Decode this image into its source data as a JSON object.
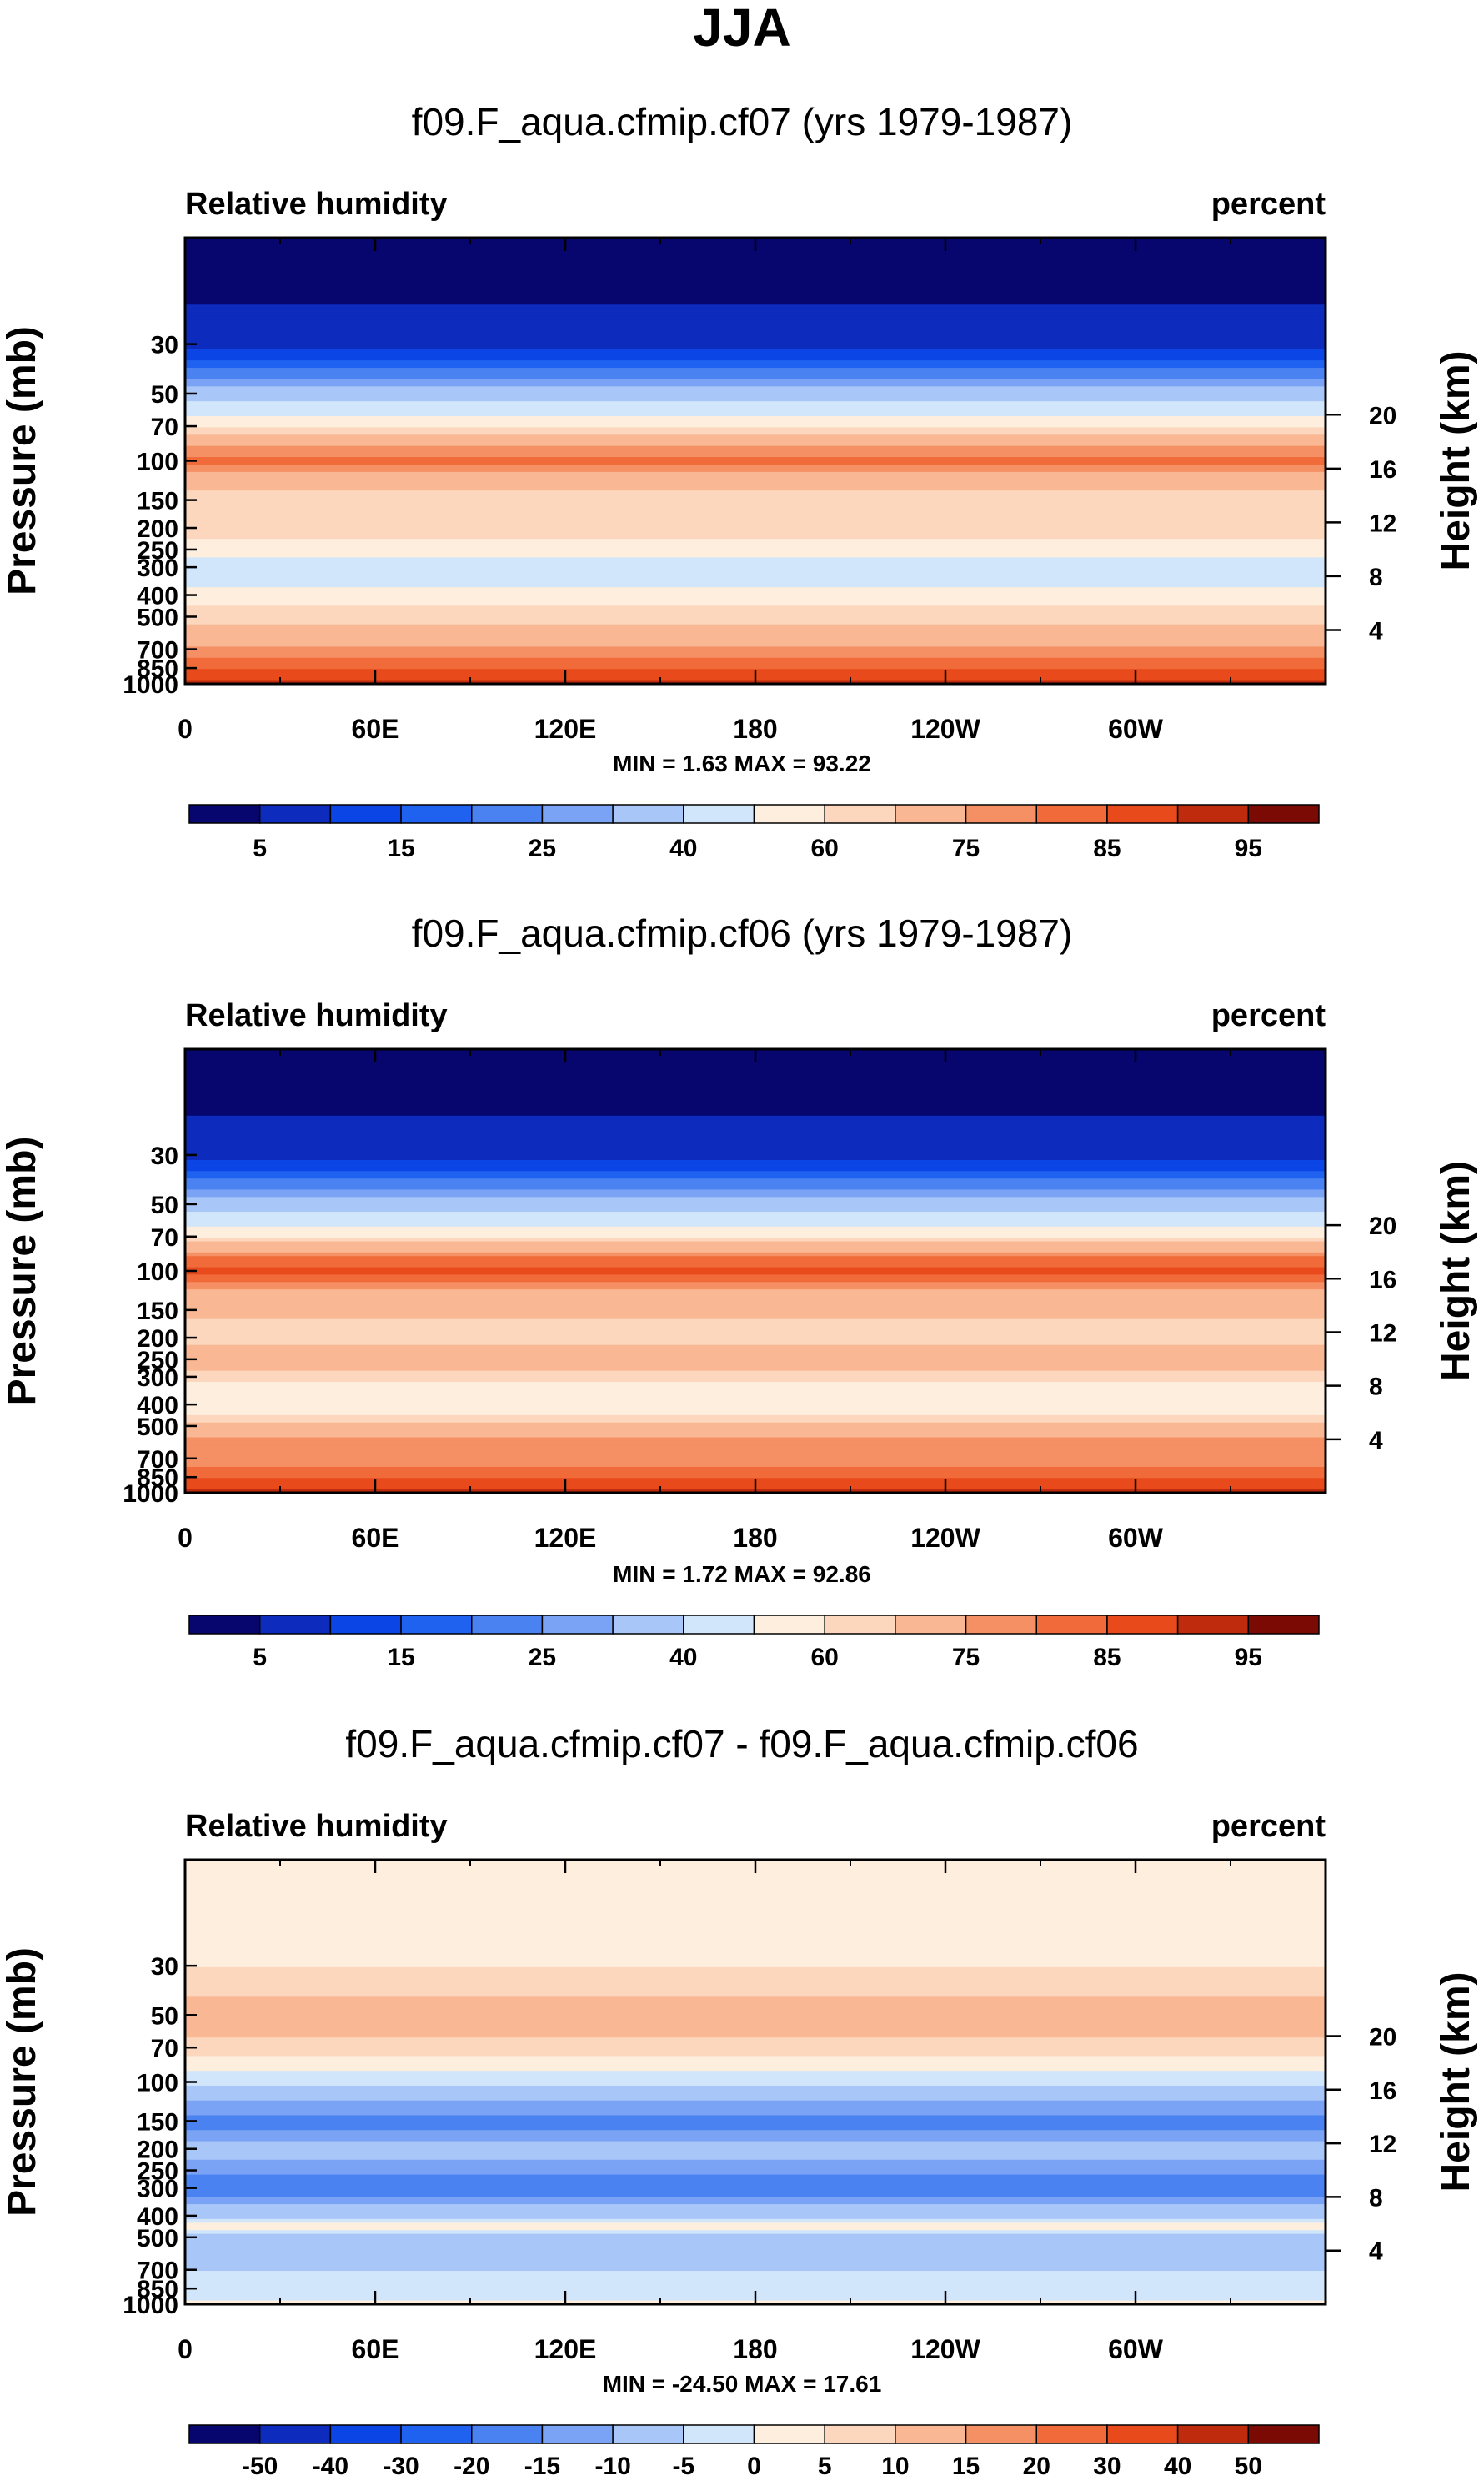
{
  "page": {
    "title": "JJA"
  },
  "chart_data": [
    {
      "type": "heatmap",
      "title": "f09.F_aqua.cfmip.cf07 (yrs 1979-1987)",
      "left_label": "Relative humidity",
      "right_label": "percent",
      "ylabel": "Pressure (mb)",
      "ylabel_right": "Height (km)",
      "x_ticks": [
        "0",
        "60E",
        "120E",
        "180",
        "120W",
        "60W"
      ],
      "y_ticks": [
        "30",
        "50",
        "70",
        "100",
        "150",
        "200",
        "250",
        "300",
        "400",
        "500",
        "700",
        "850",
        "1000"
      ],
      "height_ticks": [
        "20",
        "16",
        "12",
        "8",
        "4"
      ],
      "stats": "MIN =   1.63   MAX =  93.22",
      "colorbar_labels": [
        "5",
        "15",
        "25",
        "40",
        "60",
        "75",
        "85",
        "95"
      ],
      "profile_pressure": [
        10,
        30,
        50,
        70,
        85,
        100,
        120,
        150,
        200,
        250,
        300,
        350,
        400,
        450,
        500,
        600,
        700,
        800,
        850,
        925,
        1000
      ],
      "profile_value": [
        2,
        8,
        35,
        58,
        74,
        82,
        70,
        60,
        65,
        55,
        40,
        48,
        56,
        60,
        63,
        68,
        76,
        82,
        85,
        88,
        92
      ]
    },
    {
      "type": "heatmap",
      "title": "f09.F_aqua.cfmip.cf06 (yrs 1979-1987)",
      "left_label": "Relative humidity",
      "right_label": "percent",
      "ylabel": "Pressure (mb)",
      "ylabel_right": "Height (km)",
      "x_ticks": [
        "0",
        "60E",
        "120E",
        "180",
        "120W",
        "60W"
      ],
      "y_ticks": [
        "30",
        "50",
        "70",
        "100",
        "150",
        "200",
        "250",
        "300",
        "400",
        "500",
        "700",
        "850",
        "1000"
      ],
      "height_ticks": [
        "20",
        "16",
        "12",
        "8",
        "4"
      ],
      "stats": "MIN =   1.72   MAX =  92.86",
      "colorbar_labels": [
        "5",
        "15",
        "25",
        "40",
        "60",
        "75",
        "85",
        "95"
      ],
      "profile_pressure": [
        10,
        30,
        50,
        70,
        85,
        100,
        120,
        150,
        200,
        250,
        300,
        350,
        400,
        450,
        500,
        600,
        700,
        800,
        850,
        925,
        1000
      ],
      "profile_value": [
        2,
        8,
        35,
        60,
        80,
        86,
        76,
        66,
        63,
        70,
        63,
        56,
        57,
        60,
        68,
        78,
        77,
        82,
        85,
        88,
        92
      ]
    },
    {
      "type": "heatmap",
      "title": "f09.F_aqua.cfmip.cf07 - f09.F_aqua.cfmip.cf06",
      "left_label": "Relative humidity",
      "right_label": "percent",
      "ylabel": "Pressure (mb)",
      "ylabel_right": "Height (km)",
      "x_ticks": [
        "0",
        "60E",
        "120E",
        "180",
        "120W",
        "60W"
      ],
      "y_ticks": [
        "30",
        "50",
        "70",
        "100",
        "150",
        "200",
        "250",
        "300",
        "400",
        "500",
        "700",
        "850",
        "1000"
      ],
      "height_ticks": [
        "20",
        "16",
        "12",
        "8",
        "4"
      ],
      "stats": "MIN = -24.50   MAX =  17.61",
      "colorbar_labels": [
        "-50",
        "-40",
        "-30",
        "-20",
        "-15",
        "-10",
        "-5",
        "0",
        "5",
        "10",
        "15",
        "20",
        "30",
        "40",
        "50"
      ],
      "profile_pressure": [
        10,
        30,
        50,
        70,
        85,
        100,
        150,
        200,
        250,
        300,
        350,
        400,
        450,
        500,
        600,
        700,
        800,
        900,
        1000
      ],
      "profile_value": [
        0,
        5,
        14,
        8,
        2,
        -4,
        -18,
        -7,
        -14,
        -20,
        -10,
        -8,
        3,
        -9,
        -10,
        -5,
        -4,
        -3,
        2
      ]
    }
  ],
  "colors": {
    "abs_fills": [
      "#06066e",
      "#0d2bbd",
      "#0b45e6",
      "#2062f0",
      "#4a82f2",
      "#7ba3f5",
      "#a9c6f8",
      "#d2e6fb",
      "#fdeede",
      "#fcd7be",
      "#f9b893",
      "#f58f64",
      "#f06a3a",
      "#e84a1c",
      "#bf2b0d",
      "#7b0a05"
    ],
    "diff_fills": [
      "#06066e",
      "#0d2bbd",
      "#0b45e6",
      "#2062f0",
      "#4a82f2",
      "#7ba3f5",
      "#a9c6f8",
      "#d2e6fb",
      "#fdeede",
      "#fcd7be",
      "#f9b893",
      "#f58f64",
      "#f06a3a",
      "#e84a1c",
      "#bf2b0d",
      "#7b0a05"
    ],
    "abs_levels": [
      0,
      5,
      10,
      15,
      20,
      25,
      30,
      40,
      50,
      60,
      65,
      75,
      80,
      85,
      90,
      95
    ],
    "diff_levels": [
      -50,
      -40,
      -30,
      -20,
      -15,
      -10,
      -5,
      0,
      5,
      10,
      15,
      20,
      30,
      40,
      50
    ]
  }
}
